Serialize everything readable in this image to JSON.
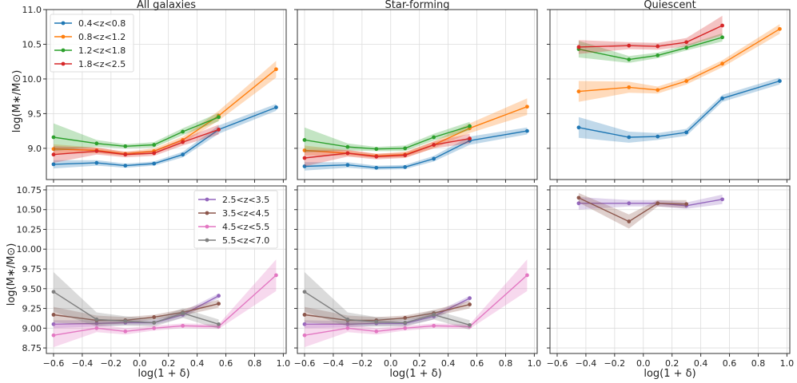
{
  "figure": {
    "xlabel": "log(1 + δ)",
    "ylabel": "log(M∗/M⊙)"
  },
  "chart_data": [
    {
      "type": "line",
      "panel": "top-all",
      "title": "All galaxies",
      "xlim": [
        -0.65,
        1.02
      ],
      "ylim": [
        8.55,
        11.0
      ],
      "xticks": [
        -0.6,
        -0.4,
        -0.2,
        0.0,
        0.2,
        0.4,
        0.6,
        0.8,
        1.0
      ],
      "yticks": [
        9.0,
        9.5,
        10.0,
        10.5,
        11.0
      ],
      "xtick_labels": [
        "−0.6",
        "−0.4",
        "−0.2",
        "0.0",
        "0.2",
        "0.4",
        "0.6",
        "0.8",
        "1.0"
      ],
      "ytick_labels": [
        "9.0",
        "9.5",
        "10.0",
        "10.5",
        "11.0"
      ],
      "show_xtick_labels": false,
      "show_ytick_labels": true,
      "grid": true,
      "legend": "top-left",
      "series": [
        {
          "name": "0.4<z<0.8",
          "color": "#1f77b4",
          "x": [
            -0.6,
            -0.3,
            -0.1,
            0.1,
            0.3,
            0.55,
            0.95
          ],
          "y": [
            8.77,
            8.79,
            8.75,
            8.78,
            8.91,
            9.27,
            9.59
          ],
          "err": [
            0.06,
            0.04,
            0.03,
            0.03,
            0.04,
            0.06,
            0.05
          ]
        },
        {
          "name": "0.8<z<1.2",
          "color": "#ff7f0e",
          "x": [
            -0.6,
            -0.3,
            -0.1,
            0.1,
            0.3,
            0.55,
            0.95
          ],
          "y": [
            8.99,
            8.97,
            8.92,
            8.96,
            9.12,
            9.47,
            10.14
          ],
          "err": [
            0.07,
            0.04,
            0.03,
            0.04,
            0.05,
            0.07,
            0.12
          ]
        },
        {
          "name": "1.2<z<1.8",
          "color": "#2ca02c",
          "x": [
            -0.6,
            -0.3,
            -0.1,
            0.1,
            0.3,
            0.55
          ],
          "y": [
            9.16,
            9.07,
            9.03,
            9.05,
            9.24,
            9.45
          ],
          "err": [
            0.2,
            0.05,
            0.03,
            0.04,
            0.05,
            0.06
          ]
        },
        {
          "name": "1.8<z<2.5",
          "color": "#d62728",
          "x": [
            -0.6,
            -0.3,
            -0.1,
            0.1,
            0.3,
            0.55
          ],
          "y": [
            8.91,
            8.96,
            8.91,
            8.93,
            9.09,
            9.27
          ],
          "err": [
            0.12,
            0.05,
            0.04,
            0.04,
            0.05,
            0.07
          ]
        }
      ]
    },
    {
      "type": "line",
      "panel": "top-sf",
      "title": "Star-forming",
      "xlim": [
        -0.65,
        1.02
      ],
      "ylim": [
        8.55,
        11.0
      ],
      "xticks": [
        -0.6,
        -0.4,
        -0.2,
        0.0,
        0.2,
        0.4,
        0.6,
        0.8,
        1.0
      ],
      "yticks": [
        9.0,
        9.5,
        10.0,
        10.5,
        11.0
      ],
      "show_xtick_labels": false,
      "show_ytick_labels": false,
      "grid": true,
      "series": [
        {
          "name": "0.4<z<0.8",
          "color": "#1f77b4",
          "x": [
            -0.6,
            -0.3,
            -0.1,
            0.1,
            0.3,
            0.55,
            0.95
          ],
          "y": [
            8.74,
            8.76,
            8.72,
            8.73,
            8.85,
            9.11,
            9.25
          ],
          "err": [
            0.06,
            0.04,
            0.03,
            0.03,
            0.04,
            0.06,
            0.05
          ]
        },
        {
          "name": "0.8<z<1.2",
          "color": "#ff7f0e",
          "x": [
            -0.6,
            -0.3,
            -0.1,
            0.1,
            0.3,
            0.55,
            0.95
          ],
          "y": [
            8.97,
            8.93,
            8.89,
            8.91,
            9.05,
            9.29,
            9.6
          ],
          "err": [
            0.07,
            0.04,
            0.03,
            0.04,
            0.05,
            0.07,
            0.12
          ]
        },
        {
          "name": "1.2<z<1.8",
          "color": "#2ca02c",
          "x": [
            -0.6,
            -0.3,
            -0.1,
            0.1,
            0.3,
            0.55
          ],
          "y": [
            9.12,
            9.02,
            8.99,
            9.0,
            9.16,
            9.32
          ],
          "err": [
            0.18,
            0.05,
            0.03,
            0.04,
            0.05,
            0.06
          ]
        },
        {
          "name": "1.8<z<2.5",
          "color": "#d62728",
          "x": [
            -0.6,
            -0.3,
            -0.1,
            0.1,
            0.3,
            0.55
          ],
          "y": [
            8.86,
            8.93,
            8.88,
            8.9,
            9.05,
            9.14
          ],
          "err": [
            0.12,
            0.05,
            0.04,
            0.04,
            0.05,
            0.07
          ]
        }
      ]
    },
    {
      "type": "line",
      "panel": "top-q",
      "title": "Quiescent",
      "xlim": [
        -0.65,
        1.02
      ],
      "ylim": [
        8.55,
        11.0
      ],
      "xticks": [
        -0.6,
        -0.4,
        -0.2,
        0.0,
        0.2,
        0.4,
        0.6,
        0.8,
        1.0
      ],
      "yticks": [
        9.0,
        9.5,
        10.0,
        10.5,
        11.0
      ],
      "show_xtick_labels": false,
      "show_ytick_labels": false,
      "grid": true,
      "series": [
        {
          "name": "0.4<z<0.8",
          "color": "#1f77b4",
          "x": [
            -0.45,
            -0.1,
            0.1,
            0.3,
            0.55,
            0.95
          ],
          "y": [
            9.3,
            9.16,
            9.17,
            9.23,
            9.72,
            9.97
          ],
          "err": [
            0.15,
            0.08,
            0.05,
            0.05,
            0.05,
            0.05
          ]
        },
        {
          "name": "0.8<z<1.2",
          "color": "#ff7f0e",
          "x": [
            -0.45,
            -0.1,
            0.1,
            0.3,
            0.55,
            0.95
          ],
          "y": [
            9.82,
            9.88,
            9.84,
            9.97,
            10.22,
            10.72
          ],
          "err": [
            0.15,
            0.08,
            0.05,
            0.05,
            0.05,
            0.07
          ]
        },
        {
          "name": "1.2<z<1.8",
          "color": "#2ca02c",
          "x": [
            -0.45,
            -0.1,
            0.1,
            0.3,
            0.55
          ],
          "y": [
            10.43,
            10.28,
            10.34,
            10.45,
            10.6
          ],
          "err": [
            0.12,
            0.05,
            0.04,
            0.04,
            0.06
          ]
        },
        {
          "name": "1.8<z<2.5",
          "color": "#d62728",
          "x": [
            -0.45,
            -0.1,
            0.1,
            0.3,
            0.55
          ],
          "y": [
            10.46,
            10.48,
            10.47,
            10.53,
            10.77
          ],
          "err": [
            0.1,
            0.05,
            0.05,
            0.06,
            0.14
          ]
        }
      ]
    },
    {
      "type": "line",
      "panel": "bottom-all",
      "title": "",
      "xlim": [
        -0.65,
        1.02
      ],
      "ylim": [
        8.68,
        10.8
      ],
      "xticks": [
        -0.6,
        -0.4,
        -0.2,
        0.0,
        0.2,
        0.4,
        0.6,
        0.8,
        1.0
      ],
      "yticks": [
        8.75,
        9.0,
        9.25,
        9.5,
        9.75,
        10.0,
        10.25,
        10.5,
        10.75
      ],
      "xtick_labels": [
        "−0.6",
        "−0.4",
        "−0.2",
        "0.0",
        "0.2",
        "0.4",
        "0.6",
        "0.8",
        "1.0"
      ],
      "ytick_labels": [
        "8.75",
        "9.00",
        "9.25",
        "9.50",
        "9.75",
        "10.00",
        "10.25",
        "10.50",
        "10.75"
      ],
      "show_xtick_labels": true,
      "show_ytick_labels": true,
      "grid": true,
      "legend": "top-right",
      "series": [
        {
          "name": "2.5<z<3.5",
          "color": "#9467bd",
          "x": [
            -0.6,
            -0.3,
            -0.1,
            0.1,
            0.3,
            0.55
          ],
          "y": [
            9.05,
            9.06,
            9.07,
            9.07,
            9.17,
            9.41
          ],
          "err": [
            0.05,
            0.04,
            0.03,
            0.03,
            0.04,
            0.03
          ]
        },
        {
          "name": "3.5<z<4.5",
          "color": "#8c564b",
          "x": [
            -0.6,
            -0.3,
            -0.1,
            0.1,
            0.3,
            0.55
          ],
          "y": [
            9.17,
            9.1,
            9.1,
            9.14,
            9.2,
            9.31
          ],
          "err": [
            0.1,
            0.06,
            0.04,
            0.03,
            0.04,
            0.05
          ]
        },
        {
          "name": "4.5<z<5.5",
          "color": "#e377c2",
          "x": [
            -0.6,
            -0.3,
            -0.1,
            0.1,
            0.3,
            0.55,
            0.95
          ],
          "y": [
            8.91,
            9.0,
            8.96,
            9.0,
            9.03,
            9.02,
            9.67
          ],
          "err": [
            0.15,
            0.05,
            0.04,
            0.03,
            0.03,
            0.03,
            0.2
          ]
        },
        {
          "name": "5.5<z<7.0",
          "color": "#7f7f7f",
          "x": [
            -0.6,
            -0.3,
            -0.1,
            0.1,
            0.3,
            0.55
          ],
          "y": [
            9.46,
            9.11,
            9.09,
            9.07,
            9.19,
            9.05
          ],
          "err": [
            0.25,
            0.09,
            0.06,
            0.05,
            0.06,
            0.06
          ]
        }
      ]
    },
    {
      "type": "line",
      "panel": "bottom-sf",
      "title": "",
      "xlim": [
        -0.65,
        1.02
      ],
      "ylim": [
        8.68,
        10.8
      ],
      "xticks": [
        -0.6,
        -0.4,
        -0.2,
        0.0,
        0.2,
        0.4,
        0.6,
        0.8,
        1.0
      ],
      "yticks": [
        8.75,
        9.0,
        9.25,
        9.5,
        9.75,
        10.0,
        10.25,
        10.5,
        10.75
      ],
      "xtick_labels": [
        "−0.6",
        "−0.4",
        "−0.2",
        "0.0",
        "0.2",
        "0.4",
        "0.6",
        "0.8",
        "1.0"
      ],
      "show_xtick_labels": true,
      "show_ytick_labels": false,
      "grid": true,
      "series": [
        {
          "name": "2.5<z<3.5",
          "color": "#9467bd",
          "x": [
            -0.6,
            -0.3,
            -0.1,
            0.1,
            0.3,
            0.55
          ],
          "y": [
            9.05,
            9.05,
            9.06,
            9.06,
            9.15,
            9.38
          ],
          "err": [
            0.05,
            0.04,
            0.03,
            0.03,
            0.04,
            0.03
          ]
        },
        {
          "name": "3.5<z<4.5",
          "color": "#8c564b",
          "x": [
            -0.6,
            -0.3,
            -0.1,
            0.1,
            0.3,
            0.55
          ],
          "y": [
            9.17,
            9.1,
            9.1,
            9.13,
            9.19,
            9.3
          ],
          "err": [
            0.1,
            0.06,
            0.04,
            0.03,
            0.04,
            0.05
          ]
        },
        {
          "name": "4.5<z<5.5",
          "color": "#e377c2",
          "x": [
            -0.6,
            -0.3,
            -0.1,
            0.1,
            0.3,
            0.55,
            0.95
          ],
          "y": [
            8.91,
            9.0,
            8.96,
            9.0,
            9.03,
            9.02,
            9.67
          ],
          "err": [
            0.15,
            0.05,
            0.04,
            0.03,
            0.03,
            0.03,
            0.2
          ]
        },
        {
          "name": "5.5<z<7.0",
          "color": "#7f7f7f",
          "x": [
            -0.6,
            -0.3,
            -0.1,
            0.1,
            0.3,
            0.55
          ],
          "y": [
            9.46,
            9.11,
            9.08,
            9.07,
            9.17,
            9.04
          ],
          "err": [
            0.25,
            0.09,
            0.06,
            0.05,
            0.06,
            0.06
          ]
        }
      ]
    },
    {
      "type": "line",
      "panel": "bottom-q",
      "title": "",
      "xlim": [
        -0.65,
        1.02
      ],
      "ylim": [
        8.68,
        10.8
      ],
      "xticks": [
        -0.6,
        -0.4,
        -0.2,
        0.0,
        0.2,
        0.4,
        0.6,
        0.8,
        1.0
      ],
      "yticks": [
        8.75,
        9.0,
        9.25,
        9.5,
        9.75,
        10.0,
        10.25,
        10.5,
        10.75
      ],
      "xtick_labels": [
        "−0.6",
        "−0.4",
        "−0.2",
        "0.0",
        "0.2",
        "0.4",
        "0.6",
        "0.8",
        "1.0"
      ],
      "show_xtick_labels": true,
      "show_ytick_labels": false,
      "grid": true,
      "series": [
        {
          "name": "2.5<z<3.5",
          "color": "#9467bd",
          "x": [
            -0.45,
            -0.1,
            0.1,
            0.3,
            0.55
          ],
          "y": [
            10.58,
            10.58,
            10.58,
            10.55,
            10.63
          ],
          "err": [
            0.08,
            0.04,
            0.04,
            0.04,
            0.06
          ]
        },
        {
          "name": "3.5<z<4.5",
          "color": "#8c564b",
          "x": [
            -0.45,
            -0.1,
            0.1,
            0.3
          ],
          "y": [
            10.65,
            10.35,
            10.58,
            10.57
          ],
          "err": [
            0.06,
            0.09,
            0.04,
            0.05
          ]
        }
      ]
    }
  ]
}
